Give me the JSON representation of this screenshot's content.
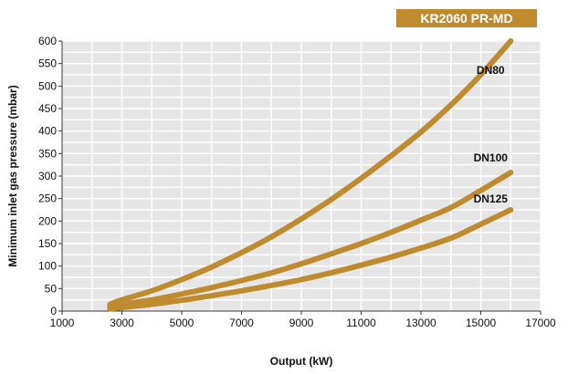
{
  "chart_data": {
    "type": "line",
    "title": "KR2060  PR-MD",
    "xlabel": "Output (kW)",
    "ylabel": "Minimum inlet gas pressure (mbar)",
    "xlim": [
      1000,
      17000
    ],
    "ylim": [
      0,
      600
    ],
    "x_ticks": [
      "1000",
      "3000",
      "5000",
      "7000",
      "9000",
      "11000",
      "13000",
      "15000",
      "17000"
    ],
    "y_ticks": [
      "0",
      "50",
      "100",
      "150",
      "200",
      "250",
      "300",
      "350",
      "400",
      "450",
      "500",
      "550",
      "600"
    ],
    "grid": true,
    "series_color": "#C08A2E",
    "badge_color": "#C08A2E",
    "series": [
      {
        "name": "DN80",
        "x": [
          2600,
          3000,
          4000,
          5000,
          6000,
          7000,
          8000,
          9000,
          10000,
          11000,
          12000,
          13000,
          14000,
          15000,
          16000
        ],
        "y": [
          15,
          25,
          45,
          70,
          98,
          130,
          165,
          205,
          248,
          295,
          345,
          398,
          458,
          525,
          600
        ]
      },
      {
        "name": "DN100",
        "x": [
          2600,
          3000,
          4000,
          5000,
          6000,
          7000,
          8000,
          9000,
          10000,
          11000,
          12000,
          13000,
          14000,
          15000,
          16000
        ],
        "y": [
          10,
          15,
          25,
          38,
          52,
          68,
          85,
          105,
          127,
          150,
          175,
          202,
          230,
          268,
          308
        ]
      },
      {
        "name": "DN125",
        "x": [
          2600,
          3000,
          4000,
          5000,
          6000,
          7000,
          8000,
          9000,
          10000,
          11000,
          12000,
          13000,
          14000,
          15000,
          16000
        ],
        "y": [
          5,
          8,
          15,
          24,
          34,
          45,
          57,
          70,
          85,
          102,
          120,
          140,
          162,
          193,
          225
        ]
      }
    ]
  }
}
